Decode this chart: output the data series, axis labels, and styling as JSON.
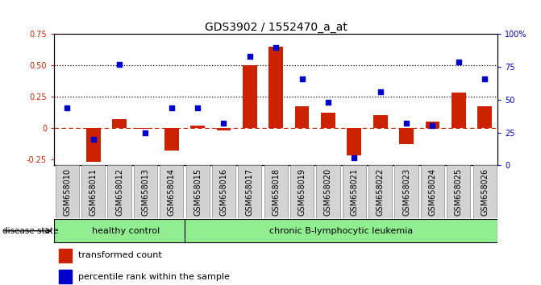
{
  "title": "GDS3902 / 1552470_a_at",
  "samples": [
    "GSM658010",
    "GSM658011",
    "GSM658012",
    "GSM658013",
    "GSM658014",
    "GSM658015",
    "GSM658016",
    "GSM658017",
    "GSM658018",
    "GSM658019",
    "GSM658020",
    "GSM658021",
    "GSM658022",
    "GSM658023",
    "GSM658024",
    "GSM658025",
    "GSM658026"
  ],
  "bar_values": [
    0.0,
    -0.27,
    0.07,
    -0.01,
    -0.18,
    0.02,
    -0.02,
    0.5,
    0.65,
    0.17,
    0.12,
    -0.22,
    0.1,
    -0.13,
    0.05,
    0.28,
    0.17
  ],
  "dot_values_pct": [
    44,
    20,
    77,
    25,
    44,
    44,
    32,
    83,
    90,
    66,
    48,
    6,
    56,
    32,
    30,
    79,
    66
  ],
  "ylim": [
    -0.3,
    0.75
  ],
  "y2lim": [
    0,
    100
  ],
  "yticks_left": [
    -0.25,
    0.0,
    0.25,
    0.5,
    0.75
  ],
  "ytick_labels_left": [
    "-0.25",
    "0",
    "0.25",
    "0.50",
    "0.75"
  ],
  "y2ticks": [
    0,
    25,
    50,
    75,
    100
  ],
  "hlines": [
    0.25,
    0.5
  ],
  "bar_color": "#cc2200",
  "dot_color": "#0000cc",
  "hline_color": "black",
  "zero_line_color": "#cc2200",
  "group_boundary": 5,
  "group_labels": [
    "healthy control",
    "chronic B-lymphocytic leukemia"
  ],
  "disease_state_label": "disease state",
  "legend_items": [
    "transformed count",
    "percentile rank within the sample"
  ],
  "bar_width": 0.55,
  "tick_fontsize": 7,
  "label_fontsize": 8,
  "title_fontsize": 10
}
